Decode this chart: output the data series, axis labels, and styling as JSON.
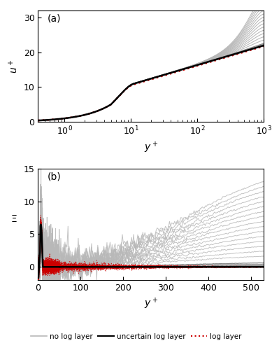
{
  "title_a": "(a)",
  "title_b": "(b)",
  "xlabel": "$y^+$",
  "ylabel_a": "$u^+$",
  "ylabel_b": "$\\Xi$",
  "gray_light": "#b8b8b8",
  "gray_dark": "#888888",
  "black": "#000000",
  "red": "#cc0000",
  "xlim_a": [
    0.4,
    1000
  ],
  "ylim_a": [
    0,
    32
  ],
  "xlim_b": [
    0,
    530
  ],
  "ylim_b": [
    -2,
    15
  ],
  "yticks_a": [
    0,
    10,
    20,
    30
  ],
  "xticks_b": [
    0,
    100,
    200,
    300,
    400,
    500
  ],
  "yticks_b": [
    0,
    5,
    10,
    15
  ]
}
